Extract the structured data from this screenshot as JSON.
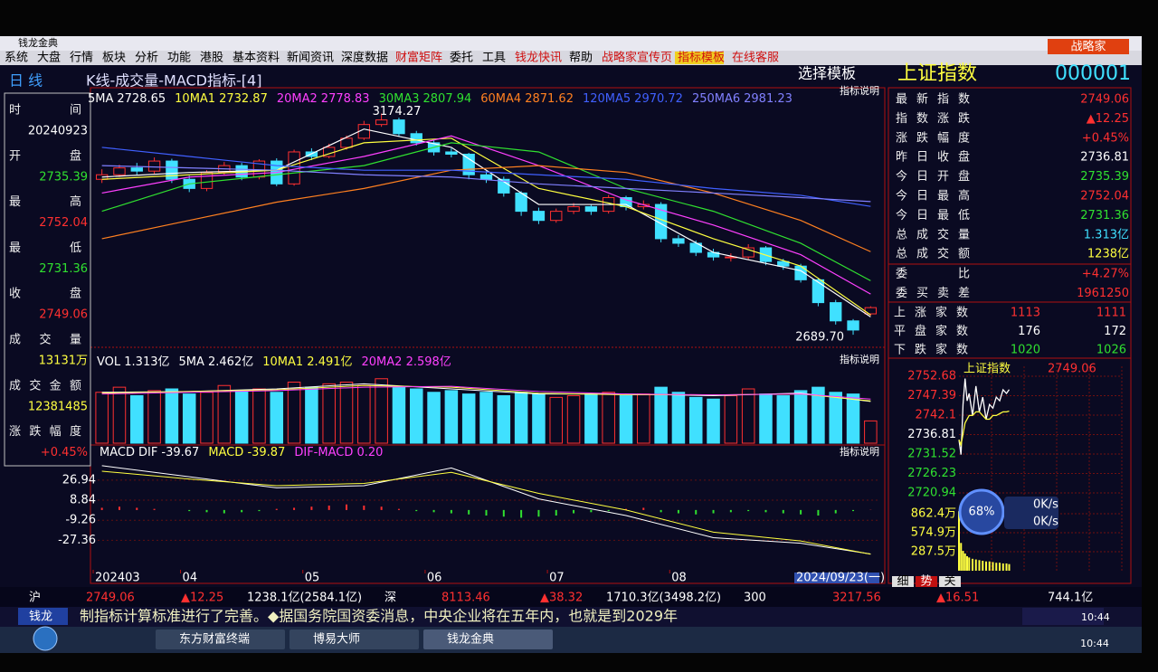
{
  "window": {
    "title": "钱龙金典",
    "logo": "战略家",
    "menu": [
      {
        "text": "系统",
        "color": "#000000"
      },
      {
        "text": "大盘",
        "color": "#000000"
      },
      {
        "text": "行情",
        "color": "#000000"
      },
      {
        "text": "板块",
        "color": "#000000"
      },
      {
        "text": "分析",
        "color": "#000000"
      },
      {
        "text": "功能",
        "color": "#000000"
      },
      {
        "text": "港股",
        "color": "#000000"
      },
      {
        "text": "基本资料",
        "color": "#000000"
      },
      {
        "text": "新闻资讯",
        "color": "#000000"
      },
      {
        "text": "深度数据",
        "color": "#000000"
      },
      {
        "text": "财富矩阵",
        "color": "#d01010"
      },
      {
        "text": "委托",
        "color": "#000000"
      },
      {
        "text": "工具",
        "color": "#000000"
      },
      {
        "text": "钱龙快讯",
        "color": "#d01010"
      },
      {
        "text": "帮助",
        "color": "#000000"
      },
      {
        "text": "战略家宣传页",
        "color": "#d01010"
      },
      {
        "text": "指标模板",
        "color": "#d01010"
      },
      {
        "text": "在线客服",
        "color": "#d01010"
      }
    ]
  },
  "header": {
    "period": "日 线",
    "layout": "K线-成交量-MACD指标-[4]",
    "template": "选择模板",
    "index_name": "上证指数",
    "index_code": "000001",
    "help": "指标说明"
  },
  "info_panel": [
    {
      "label": "时间",
      "value": "20240923",
      "color": "#ffffff"
    },
    {
      "label": "开盘",
      "value": "2735.39",
      "color": "#30e030"
    },
    {
      "label": "最高",
      "value": "2752.04",
      "color": "#ff3030"
    },
    {
      "label": "最低",
      "value": "2731.36",
      "color": "#30e030"
    },
    {
      "label": "收盘",
      "value": "2749.06",
      "color": "#ff3030"
    },
    {
      "label": "成交量",
      "value": "13131万",
      "color": "#ffff40"
    },
    {
      "label": "成交金额",
      "value": "12381485",
      "color": "#ffff40"
    },
    {
      "label": "涨跌幅度",
      "value": "+0.45%",
      "color": "#ff3030"
    }
  ],
  "quote_panel": [
    {
      "label": "最新指数",
      "value": "2749.06",
      "color": "#ff3030"
    },
    {
      "label": "指数涨跌",
      "value": "▲12.25",
      "color": "#ff3030"
    },
    {
      "label": "涨跌幅度",
      "value": "+0.45%",
      "color": "#ff3030"
    },
    {
      "label": "昨日收盘",
      "value": "2736.81",
      "color": "#ffffff"
    },
    {
      "label": "今日开盘",
      "value": "2735.39",
      "color": "#30e030"
    },
    {
      "label": "今日最高",
      "value": "2752.04",
      "color": "#ff3030"
    },
    {
      "label": "今日最低",
      "value": "2731.36",
      "color": "#30e030"
    },
    {
      "label": "总成交量",
      "value": "1.313亿",
      "color": "#40e0ff"
    },
    {
      "label": "总成交额",
      "value": "1238亿",
      "color": "#ffff40"
    },
    {
      "label": "委比",
      "value": "+4.27%",
      "color": "#ff3030"
    },
    {
      "label": "委买卖差",
      "value": "1961250",
      "color": "#ff3030"
    }
  ],
  "breadth": [
    {
      "label": "上涨家数",
      "values": [
        "1113",
        "1111"
      ],
      "color": "#ff3030"
    },
    {
      "label": "平盘家数",
      "values": [
        "176",
        "172"
      ],
      "color": "#ffffff"
    },
    {
      "label": "下跌家数",
      "values": [
        "1020",
        "1026"
      ],
      "color": "#30e030"
    }
  ],
  "chart_data": [
    {
      "type": "candlestick",
      "up_color": "#ff3030",
      "down_color": "#40e0ff",
      "open": [
        3030,
        3040,
        3055,
        3048,
        3070,
        3030,
        3010,
        3045,
        3060,
        3035,
        3070,
        3020,
        3090,
        3080,
        3100,
        3120,
        3150,
        3160,
        3130,
        3110,
        3090,
        3085,
        3040,
        3030,
        3000,
        2960,
        2940,
        2960,
        2970,
        2960,
        2990,
        2970,
        2975,
        2900,
        2890,
        2870,
        2860,
        2860,
        2880,
        2850,
        2840,
        2810,
        2760,
        2720,
        2735.39
      ],
      "high": [
        3052,
        3062,
        3066,
        3078,
        3075,
        3038,
        3050,
        3068,
        3066,
        3074,
        3076,
        3095,
        3098,
        3108,
        3126,
        3158,
        3174.27,
        3165,
        3136,
        3115,
        3098,
        3088,
        3048,
        3036,
        3004,
        2968,
        2966,
        2978,
        2976,
        2996,
        2994,
        2984,
        2980,
        2908,
        2896,
        2878,
        2868,
        2888,
        2884,
        2856,
        2845,
        2814,
        2766,
        2724,
        2752.04
      ],
      "low": [
        3022,
        3035,
        3040,
        3042,
        3022,
        3002,
        3004,
        3040,
        3028,
        3030,
        3015,
        3016,
        3072,
        3076,
        3095,
        3116,
        3145,
        3124,
        3104,
        3082,
        3078,
        3030,
        3022,
        2992,
        2950,
        2932,
        2935,
        2954,
        2952,
        2955,
        2962,
        2964,
        2892,
        2882,
        2862,
        2852,
        2850,
        2855,
        2842,
        2832,
        2804,
        2752,
        2712,
        2689.7,
        2731.36
      ],
      "close": [
        3040,
        3055,
        3048,
        3070,
        3030,
        3010,
        3045,
        3060,
        3035,
        3070,
        3020,
        3090,
        3080,
        3100,
        3120,
        3150,
        3160,
        3130,
        3110,
        3090,
        3085,
        3040,
        3030,
        3000,
        2960,
        2940,
        2960,
        2970,
        2960,
        2990,
        2970,
        2975,
        2900,
        2890,
        2870,
        2860,
        2860,
        2880,
        2850,
        2840,
        2810,
        2760,
        2720,
        2700,
        2749.06
      ],
      "ylim": [
        2680,
        3185
      ],
      "annotations": [
        {
          "index": 16,
          "label": "3174.27"
        },
        {
          "index": 43,
          "label": "2689.70"
        }
      ],
      "ma_x": [
        0,
        5,
        10,
        15,
        20,
        25,
        30,
        35,
        40,
        44
      ],
      "series": [
        {
          "name": "5MA",
          "color": "#ffffff",
          "values": [
            3035,
            3045,
            3050,
            3140,
            3100,
            2975,
            2975,
            2870,
            2830,
            2728.65
          ]
        },
        {
          "name": "10MA1",
          "color": "#ffff40",
          "values": [
            3030,
            3040,
            3050,
            3110,
            3120,
            3010,
            2970,
            2900,
            2840,
            2732.87
          ]
        },
        {
          "name": "20MA2",
          "color": "#ff40ff",
          "values": [
            3000,
            3035,
            3045,
            3080,
            3125,
            3060,
            2985,
            2930,
            2865,
            2778.83
          ]
        },
        {
          "name": "30MA3",
          "color": "#30e030",
          "values": [
            2960,
            3020,
            3040,
            3060,
            3110,
            3090,
            3010,
            2960,
            2890,
            2807.94
          ]
        },
        {
          "name": "60MA4",
          "color": "#ff8020",
          "values": [
            2900,
            2940,
            2980,
            3010,
            3050,
            3060,
            3045,
            3000,
            2940,
            2871.62
          ]
        },
        {
          "name": "120MA5",
          "color": "#4060ff",
          "values": [
            3100,
            3080,
            3060,
            3050,
            3050,
            3040,
            3030,
            3010,
            2995,
            2970.72
          ]
        },
        {
          "name": "250MA6",
          "color": "#8080ff",
          "values": [
            3060,
            3055,
            3050,
            3040,
            3035,
            3020,
            3010,
            3000,
            2990,
            2981.23
          ]
        }
      ]
    },
    {
      "type": "bar",
      "values": [
        3.0,
        3.3,
        2.8,
        3.1,
        3.2,
        2.9,
        3.0,
        3.4,
        3.1,
        3.2,
        3.0,
        3.6,
        3.3,
        3.5,
        3.6,
        3.4,
        3.8,
        3.3,
        3.2,
        3.0,
        3.1,
        2.9,
        3.0,
        2.8,
        3.0,
        2.9,
        2.7,
        2.8,
        2.9,
        3.0,
        2.8,
        2.9,
        3.3,
        3.0,
        2.7,
        2.6,
        2.8,
        3.2,
        2.9,
        2.8,
        3.1,
        3.3,
        3.0,
        2.9,
        1.313
      ],
      "ylim": [
        0,
        4
      ],
      "title": "VOL 1.313亿",
      "series": [
        {
          "name": "5MA 2.462亿",
          "color": "#ffffff",
          "values": [
            3.0,
            3.05,
            3.2,
            3.5,
            3.2,
            2.9,
            2.9,
            2.8,
            2.95,
            2.462
          ]
        },
        {
          "name": "10MA1 2.491亿",
          "color": "#ffff40",
          "values": [
            2.95,
            3.05,
            3.15,
            3.4,
            3.3,
            2.95,
            2.85,
            2.85,
            2.9,
            2.491
          ]
        },
        {
          "name": "20MA2 2.598亿",
          "color": "#ff40ff",
          "values": [
            2.9,
            3.0,
            3.1,
            3.3,
            3.35,
            3.05,
            2.9,
            2.85,
            2.9,
            2.598
          ]
        }
      ]
    },
    {
      "type": "macd",
      "title": "MACD",
      "hist": [
        2,
        3,
        2,
        1,
        0,
        -1,
        -2,
        -3,
        -2,
        -1,
        1,
        2,
        3,
        4,
        5,
        4,
        3,
        1,
        -1,
        -2,
        -3,
        -4,
        -5,
        -6,
        -7,
        -6,
        -5,
        -3,
        -2,
        -1,
        1,
        2,
        -2,
        -3,
        -4,
        -3,
        -2,
        -1,
        -2,
        -3,
        -4,
        -5,
        -3,
        -1,
        0.2
      ],
      "series": [
        {
          "name": "DIF -39.67",
          "color": "#ffffff",
          "values": [
            40,
            30,
            20,
            22,
            38,
            10,
            -5,
            -25,
            -30,
            -39.67
          ]
        },
        {
          "name": "MACD -39.87",
          "color": "#ffff40",
          "values": [
            35,
            28,
            22,
            24,
            34,
            15,
            0,
            -20,
            -28,
            -39.87
          ]
        }
      ],
      "diff_label": "DIF-MACD 0.20",
      "ylim": [
        -54,
        44
      ],
      "yticks": [
        26.94,
        8.84,
        -9.26,
        -27.36
      ],
      "xticks": [
        {
          "value": 0,
          "label": "202403"
        },
        {
          "value": 5,
          "label": "04"
        },
        {
          "value": 12,
          "label": "05"
        },
        {
          "value": 19,
          "label": "06"
        },
        {
          "value": 26,
          "label": "07"
        },
        {
          "value": 33,
          "label": "08"
        }
      ],
      "x_end_label": "2024/09/23(一)"
    },
    {
      "type": "line",
      "title": "上证指数",
      "value_label": "2749.06",
      "x": [
        0,
        3,
        6,
        9,
        12,
        15,
        20,
        25,
        30,
        35,
        40,
        45,
        50,
        55,
        60,
        65,
        70,
        74
      ],
      "xlim": [
        0,
        240
      ],
      "series": [
        {
          "color": "#ffffff",
          "values": [
            2735.39,
            2731.36,
            2745,
            2752.04,
            2746,
            2748,
            2742,
            2750,
            2743,
            2747,
            2741,
            2745,
            2744,
            2747,
            2746,
            2749,
            2748,
            2749.06
          ]
        },
        {
          "color": "#ffff40",
          "values": [
            2735.39,
            2734,
            2737,
            2740,
            2741,
            2742,
            2742,
            2743,
            2743,
            2742,
            2741,
            2741,
            2742,
            2742,
            2742.5,
            2743,
            2743,
            2743.2
          ]
        }
      ],
      "base": 2736.81,
      "ylim": [
        2720.94,
        2752.68
      ],
      "yticks": [
        2752.68,
        2747.39,
        2742.1,
        2736.81,
        2731.52,
        2726.23,
        2720.94
      ],
      "volume": [
        900,
        420,
        300,
        260,
        220,
        200,
        180,
        170,
        160,
        150,
        140,
        140,
        130,
        120,
        120,
        110,
        110,
        100
      ],
      "vol_ylim": [
        0,
        1150
      ],
      "vol_yticks": [
        {
          "value": 862.4,
          "label": "862.4万"
        },
        {
          "value": 574.9,
          "label": "574.9万"
        },
        {
          "value": 287.5,
          "label": "287.5万"
        }
      ]
    }
  ],
  "widget": {
    "percent": "68%",
    "up": "0K/s",
    "down": "0K/s"
  },
  "tabs": [
    "细",
    "势",
    "关"
  ],
  "ticker": [
    {
      "text": "沪",
      "color": "#ffffff"
    },
    {
      "text": "2749.06",
      "color": "#ff3030"
    },
    {
      "text": "▲12.25",
      "color": "#ff3030"
    },
    {
      "text": "1238.1亿(2584.1亿)",
      "color": "#ffffff"
    },
    {
      "text": "深",
      "color": "#ffffff"
    },
    {
      "text": "8113.46",
      "color": "#ff3030"
    },
    {
      "text": "▲38.32",
      "color": "#ff3030"
    },
    {
      "text": "1710.3亿(3498.2亿)",
      "color": "#ffffff"
    },
    {
      "text": "300",
      "color": "#ffffff"
    },
    {
      "text": "3217.56",
      "color": "#ff3030"
    },
    {
      "text": "▲16.51",
      "color": "#ff3030"
    },
    {
      "text": "744.1亿",
      "color": "#ffffff"
    }
  ],
  "news": {
    "label": "钱龙",
    "text": "制指标计算标准进行了完善。◆据国务院国资委消息，中央企业将在五年内，也就是到2029年"
  },
  "status_time": "10:44",
  "taskbar": {
    "buttons": [
      "东方财富终端",
      "博易大师",
      "钱龙金典"
    ],
    "clock": "10:44"
  }
}
